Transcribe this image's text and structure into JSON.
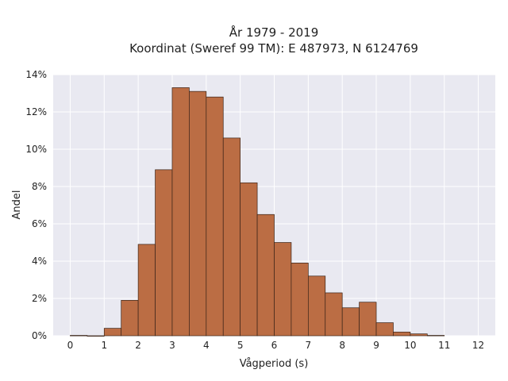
{
  "chart_data": {
    "type": "bar",
    "title_line1": "År 1979 - 2019",
    "title_line2": "Koordinat (Sweref 99 TM): E 487973, N 6124769",
    "xlabel": "Vågperiod (s)",
    "ylabel": "Andel",
    "bin_width": 0.5,
    "bins": [
      {
        "start": 0.0,
        "value": 0.0002
      },
      {
        "start": 0.5,
        "value": 0.0
      },
      {
        "start": 1.0,
        "value": 0.004
      },
      {
        "start": 1.5,
        "value": 0.019
      },
      {
        "start": 2.0,
        "value": 0.049
      },
      {
        "start": 2.5,
        "value": 0.089
      },
      {
        "start": 3.0,
        "value": 0.133
      },
      {
        "start": 3.5,
        "value": 0.131
      },
      {
        "start": 4.0,
        "value": 0.128
      },
      {
        "start": 4.5,
        "value": 0.106
      },
      {
        "start": 5.0,
        "value": 0.082
      },
      {
        "start": 5.5,
        "value": 0.065
      },
      {
        "start": 6.0,
        "value": 0.05
      },
      {
        "start": 6.5,
        "value": 0.039
      },
      {
        "start": 7.0,
        "value": 0.032
      },
      {
        "start": 7.5,
        "value": 0.023
      },
      {
        "start": 8.0,
        "value": 0.015
      },
      {
        "start": 8.5,
        "value": 0.018
      },
      {
        "start": 9.0,
        "value": 0.007
      },
      {
        "start": 9.5,
        "value": 0.002
      },
      {
        "start": 10.0,
        "value": 0.001
      },
      {
        "start": 10.5,
        "value": 0.0002
      }
    ],
    "xlim": [
      -0.5,
      12.5
    ],
    "ylim": [
      0,
      0.14
    ],
    "xticks": [
      0,
      1,
      2,
      3,
      4,
      5,
      6,
      7,
      8,
      9,
      10,
      11,
      12
    ],
    "yticks": [
      0,
      0.02,
      0.04,
      0.06,
      0.08,
      0.1,
      0.12,
      0.14
    ],
    "ytick_labels": [
      "0%",
      "2%",
      "4%",
      "6%",
      "8%",
      "10%",
      "12%",
      "14%"
    ],
    "grid": true,
    "colors": {
      "bar_fill": "#bb6d44",
      "bar_edge": "#3a2418",
      "plot_bg": "#e9e9f1",
      "grid": "#ffffff"
    }
  }
}
